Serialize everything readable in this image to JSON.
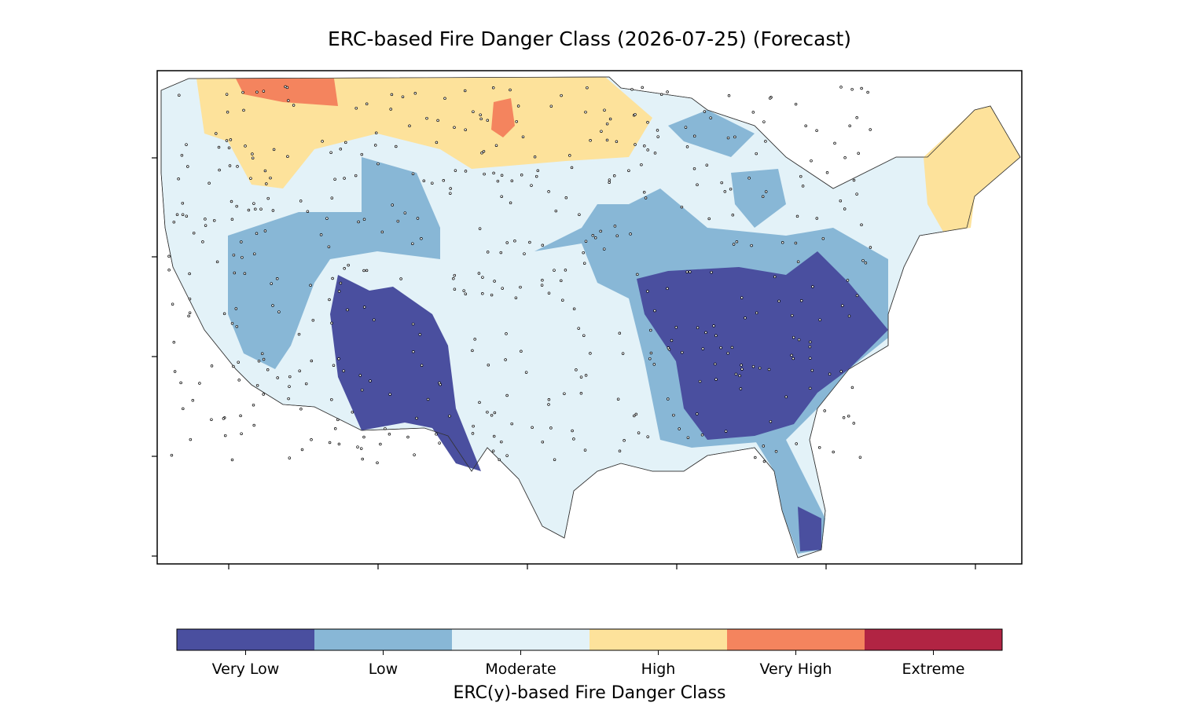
{
  "title": "ERC-based Fire Danger Class (2026-07-25) (Forecast)",
  "colorbar": {
    "label": "ERC(y)-based Fire Danger Class",
    "classes": [
      {
        "name": "Very Low",
        "color": "#4a4f9f"
      },
      {
        "name": "Low",
        "color": "#88b7d6"
      },
      {
        "name": "Moderate",
        "color": "#e3f2f8"
      },
      {
        "name": "High",
        "color": "#fde29b"
      },
      {
        "name": "Very High",
        "color": "#f4845e"
      },
      {
        "name": "Extreme",
        "color": "#b12443"
      }
    ]
  }
}
